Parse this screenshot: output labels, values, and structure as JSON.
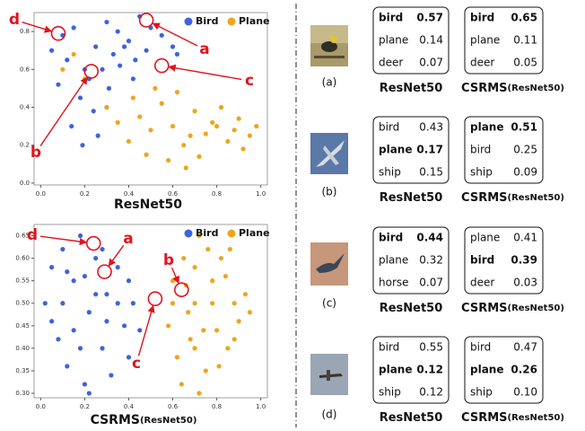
{
  "chart_data": [
    {
      "type": "scatter",
      "title": "ResNet50",
      "xlim": [
        -0.03,
        1.03
      ],
      "ylim": [
        -0.01,
        0.9
      ],
      "xticks": [
        {
          "value": 0,
          "label": "0.0"
        },
        0.2,
        0.4,
        0.6,
        0.8,
        {
          "value": 1,
          "label": "1.0"
        }
      ],
      "yticks": [
        {
          "value": 0,
          "label": "0.0"
        },
        0.2,
        0.4,
        0.6,
        0.8
      ],
      "legend": "upper right",
      "series": [
        {
          "name": "Bird",
          "color": "#3d63de",
          "x": [
            0.05,
            0.1,
            0.15,
            0.2,
            0.25,
            0.3,
            0.35,
            0.4,
            0.45,
            0.5,
            0.08,
            0.12,
            0.18,
            0.22,
            0.28,
            0.33,
            0.38,
            0.43,
            0.55,
            0.6,
            0.14,
            0.24,
            0.31,
            0.19,
            0.26,
            0.36,
            0.48,
            0.3,
            0.42,
            0.62
          ],
          "values": [
            0.7,
            0.78,
            0.82,
            0.6,
            0.72,
            0.85,
            0.8,
            0.75,
            0.88,
            0.82,
            0.52,
            0.65,
            0.45,
            0.55,
            0.6,
            0.68,
            0.72,
            0.65,
            0.78,
            0.72,
            0.3,
            0.38,
            0.5,
            0.2,
            0.25,
            0.62,
            0.7,
            0.4,
            0.55,
            0.68
          ]
        },
        {
          "name": "Plane",
          "color": "#eea51c",
          "x": [
            0.3,
            0.35,
            0.4,
            0.45,
            0.5,
            0.55,
            0.6,
            0.65,
            0.7,
            0.75,
            0.8,
            0.85,
            0.9,
            0.95,
            0.98,
            0.42,
            0.52,
            0.62,
            0.72,
            0.82,
            0.92,
            0.58,
            0.68,
            0.78,
            0.88,
            0.1,
            0.15,
            0.2,
            0.48,
            0.66
          ],
          "values": [
            0.4,
            0.32,
            0.22,
            0.35,
            0.28,
            0.42,
            0.3,
            0.2,
            0.38,
            0.26,
            0.3,
            0.22,
            0.34,
            0.25,
            0.3,
            0.45,
            0.5,
            0.48,
            0.14,
            0.4,
            0.18,
            0.12,
            0.25,
            0.32,
            0.28,
            0.6,
            0.68,
            0.55,
            0.15,
            0.08
          ]
        }
      ],
      "annotations": [
        {
          "label": "d",
          "x": 0.08,
          "y": 0.79
        },
        {
          "label": "a",
          "x": 0.48,
          "y": 0.86
        },
        {
          "label": "c",
          "x": 0.55,
          "y": 0.62
        },
        {
          "label": "b",
          "x": 0.23,
          "y": 0.59
        }
      ]
    },
    {
      "type": "scatter",
      "title": "CSRMS",
      "title_sub": "(ResNet50)",
      "xlim": [
        -0.03,
        1.03
      ],
      "ylim": [
        0.29,
        0.675
      ],
      "xticks": [
        {
          "value": 0,
          "label": "0.0"
        },
        0.2,
        0.4,
        0.6,
        0.8,
        {
          "value": 1,
          "label": "1.0"
        }
      ],
      "yticks": [
        {
          "value": 0.3,
          "label": "0.30"
        },
        0.35,
        {
          "value": 0.4,
          "label": "0.40"
        },
        0.45,
        {
          "value": 0.5,
          "label": "0.50"
        },
        0.55,
        {
          "value": 0.6,
          "label": "0.60"
        },
        0.65
      ],
      "legend": "upper right",
      "series": [
        {
          "name": "Bird",
          "color": "#3d63de",
          "x": [
            0.02,
            0.05,
            0.08,
            0.1,
            0.12,
            0.15,
            0.18,
            0.2,
            0.22,
            0.25,
            0.28,
            0.3,
            0.32,
            0.35,
            0.38,
            0.4,
            0.42,
            0.45,
            0.05,
            0.1,
            0.15,
            0.2,
            0.25,
            0.3,
            0.35,
            0.4,
            0.18,
            0.22,
            0.28,
            0.12
          ],
          "values": [
            0.5,
            0.58,
            0.42,
            0.62,
            0.36,
            0.55,
            0.65,
            0.32,
            0.48,
            0.6,
            0.4,
            0.52,
            0.34,
            0.58,
            0.45,
            0.38,
            0.5,
            0.44,
            0.46,
            0.5,
            0.44,
            0.56,
            0.52,
            0.46,
            0.5,
            0.55,
            0.4,
            0.3,
            0.62,
            0.57
          ]
        },
        {
          "name": "Plane",
          "color": "#eea51c",
          "x": [
            0.58,
            0.6,
            0.62,
            0.65,
            0.68,
            0.7,
            0.72,
            0.75,
            0.78,
            0.8,
            0.82,
            0.85,
            0.88,
            0.9,
            0.93,
            0.95,
            0.64,
            0.7,
            0.76,
            0.84,
            0.6,
            0.67,
            0.74,
            0.81,
            0.88,
            0.72,
            0.78,
            0.66,
            0.86,
            0.7
          ],
          "values": [
            0.45,
            0.55,
            0.38,
            0.6,
            0.42,
            0.5,
            0.65,
            0.35,
            0.55,
            0.44,
            0.6,
            0.4,
            0.5,
            0.46,
            0.52,
            0.48,
            0.32,
            0.58,
            0.62,
            0.56,
            0.5,
            0.48,
            0.44,
            0.36,
            0.42,
            0.3,
            0.5,
            0.54,
            0.62,
            0.4
          ]
        }
      ],
      "annotations": [
        {
          "label": "d",
          "x": 0.24,
          "y": 0.633
        },
        {
          "label": "a",
          "x": 0.29,
          "y": 0.57
        },
        {
          "label": "b",
          "x": 0.64,
          "y": 0.53
        },
        {
          "label": "c",
          "x": 0.52,
          "y": 0.51
        }
      ]
    }
  ],
  "examples": [
    {
      "label": "(a)",
      "tables": [
        {
          "caption": "ResNet50",
          "bold": 0,
          "rows": [
            [
              "bird",
              "0.57"
            ],
            [
              "plane",
              "0.14"
            ],
            [
              "deer",
              "0.07"
            ]
          ]
        },
        {
          "caption": "CSRMS",
          "caption_sub": "(ResNet50)",
          "bold": 0,
          "rows": [
            [
              "bird",
              "0.65"
            ],
            [
              "plane",
              "0.11"
            ],
            [
              "deer",
              "0.05"
            ]
          ]
        }
      ]
    },
    {
      "label": "(b)",
      "tables": [
        {
          "caption": "ResNet50",
          "bold": 1,
          "rows": [
            [
              "bird",
              "0.43"
            ],
            [
              "plane",
              "0.17"
            ],
            [
              "ship",
              "0.15"
            ]
          ]
        },
        {
          "caption": "CSRMS",
          "caption_sub": "(ResNet50)",
          "bold": 0,
          "rows": [
            [
              "plane",
              "0.51"
            ],
            [
              "bird",
              "0.25"
            ],
            [
              "ship",
              "0.09"
            ]
          ]
        }
      ]
    },
    {
      "label": "(c)",
      "tables": [
        {
          "caption": "ResNet50",
          "bold": 0,
          "rows": [
            [
              "bird",
              "0.44"
            ],
            [
              "plane",
              "0.32"
            ],
            [
              "horse",
              "0.07"
            ]
          ]
        },
        {
          "caption": "CSRMS",
          "caption_sub": "(ResNet50)",
          "bold": 1,
          "rows": [
            [
              "plane",
              "0.41"
            ],
            [
              "bird",
              "0.39"
            ],
            [
              "deer",
              "0.03"
            ]
          ]
        }
      ]
    },
    {
      "label": "(d)",
      "tables": [
        {
          "caption": "ResNet50",
          "bold": 1,
          "rows": [
            [
              "bird",
              "0.55"
            ],
            [
              "plane",
              "0.12"
            ],
            [
              "ship",
              "0.12"
            ]
          ]
        },
        {
          "caption": "CSRMS",
          "caption_sub": "(ResNet50)",
          "bold": 1,
          "rows": [
            [
              "bird",
              "0.47"
            ],
            [
              "plane",
              "0.26"
            ],
            [
              "ship",
              "0.10"
            ]
          ]
        }
      ]
    }
  ]
}
